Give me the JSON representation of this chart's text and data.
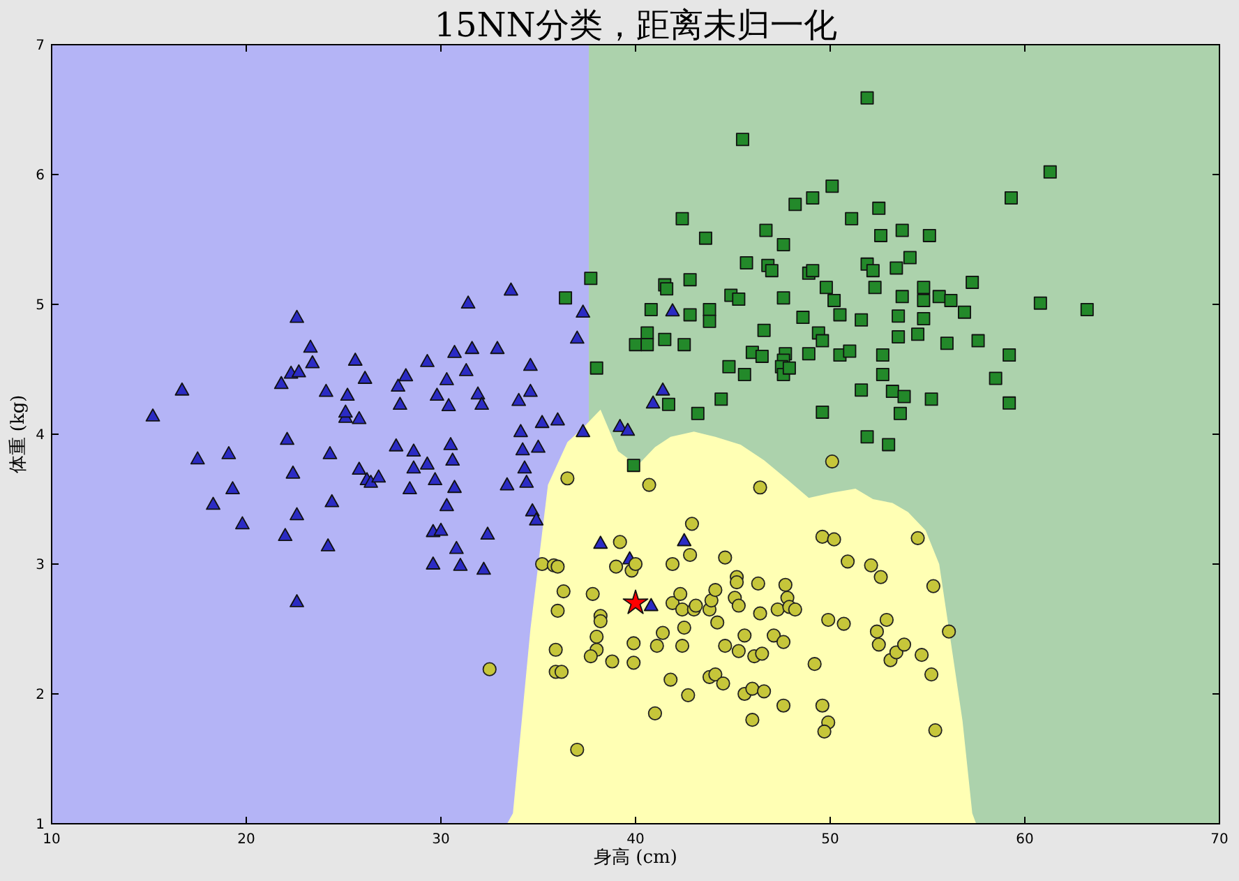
{
  "chart_data": {
    "type": "scatter",
    "title": "15NN分类，距离未归一化",
    "xlabel": "身高 (cm)",
    "ylabel": "体重 (kg)",
    "xlim": [
      10,
      70
    ],
    "ylim": [
      1,
      7
    ],
    "xticks": [
      10,
      20,
      30,
      40,
      50,
      60,
      70
    ],
    "yticks": [
      1,
      2,
      3,
      4,
      5,
      6,
      7
    ],
    "bands": [
      {
        "axis": "x",
        "from": 10,
        "to": 37.6,
        "color": "#b4b4f6"
      },
      {
        "axis": "x",
        "from": 37.6,
        "to": 70,
        "color": "#acd2ac"
      }
    ],
    "series": [
      {
        "type": "area",
        "color": "#ffffb4",
        "x": [
          33.4,
          33.7,
          34.6,
          35.5,
          36.5,
          37.3,
          38.2,
          39.1,
          40.1,
          41.0,
          41.8,
          43.0,
          44.1,
          45.4,
          46.6,
          47.8,
          48.9,
          50.1,
          51.3,
          52.2,
          53.2,
          54.0,
          54.9,
          55.6,
          56.1,
          56.8,
          57.3,
          57.5
        ],
        "values": [
          1.0,
          1.08,
          2.5,
          3.61,
          3.94,
          4.05,
          4.19,
          3.87,
          3.76,
          3.9,
          3.98,
          4.02,
          3.98,
          3.92,
          3.8,
          3.65,
          3.51,
          3.55,
          3.58,
          3.5,
          3.47,
          3.4,
          3.26,
          3.0,
          2.5,
          1.79,
          1.08,
          1.0
        ]
      },
      {
        "marker": "triangle",
        "color": "#2b2bc4",
        "x": [
          15.2,
          16.7,
          17.5,
          18.3,
          19.1,
          19.3,
          19.8,
          21.8,
          22.0,
          22.1,
          22.3,
          22.4,
          22.6,
          22.6,
          22.6,
          22.7,
          23.3,
          23.4,
          24.1,
          24.2,
          24.3,
          24.4,
          25.1,
          25.1,
          25.2,
          25.6,
          25.8,
          25.8,
          26.1,
          26.2,
          26.4,
          26.8,
          27.7,
          27.8,
          27.9,
          28.2,
          28.4,
          28.6,
          28.6,
          29.3,
          29.3,
          29.7,
          29.8,
          29.6,
          29.6,
          30.0,
          30.3,
          30.3,
          30.4,
          30.5,
          30.6,
          30.7,
          30.7,
          30.8,
          31.0,
          31.3,
          31.4,
          31.6,
          31.9,
          32.1,
          32.2,
          32.4,
          32.9,
          33.4,
          33.6,
          34.0,
          34.1,
          34.2,
          34.3,
          34.4,
          34.6,
          34.6,
          34.7,
          34.9,
          35.0,
          35.2,
          36.0,
          37.0,
          37.3,
          37.3,
          38.2,
          39.2,
          39.6,
          39.7,
          40.8,
          41.9,
          40.9,
          41.4,
          42.5
        ],
        "values": [
          4.14,
          4.34,
          3.81,
          3.46,
          3.85,
          3.58,
          3.31,
          4.39,
          3.22,
          3.96,
          4.47,
          3.7,
          2.71,
          4.9,
          3.38,
          4.48,
          4.67,
          4.55,
          4.33,
          3.14,
          3.85,
          3.48,
          4.13,
          4.17,
          4.3,
          4.57,
          4.12,
          3.73,
          4.43,
          3.65,
          3.63,
          3.67,
          3.91,
          4.37,
          4.23,
          4.45,
          3.58,
          3.87,
          3.74,
          4.56,
          3.77,
          3.65,
          4.3,
          3.0,
          3.25,
          3.26,
          4.42,
          3.45,
          4.22,
          3.92,
          3.8,
          4.63,
          3.59,
          3.12,
          2.99,
          4.49,
          5.01,
          4.66,
          4.31,
          4.23,
          2.96,
          3.23,
          4.66,
          3.61,
          5.11,
          4.26,
          4.02,
          3.88,
          3.74,
          3.63,
          4.53,
          4.33,
          3.41,
          3.34,
          3.9,
          4.09,
          4.11,
          4.74,
          4.94,
          4.02,
          3.16,
          4.06,
          4.03,
          3.04,
          2.68,
          4.95,
          4.24,
          4.34,
          3.18
        ]
      },
      {
        "marker": "square",
        "color": "#23892a",
        "x": [
          51.9,
          45.5,
          61.3,
          59.3,
          50.1,
          49.1,
          48.2,
          52.5,
          51.1,
          42.4,
          46.7,
          52.6,
          53.7,
          55.1,
          47.6,
          43.6,
          45.7,
          46.8,
          47.0,
          48.9,
          49.1,
          51.9,
          52.2,
          53.4,
          54.1,
          57.3,
          60.8,
          63.2,
          49.8,
          52.3,
          54.8,
          42.8,
          41.5,
          41.6,
          37.7,
          36.4,
          40.8,
          44.9,
          45.3,
          47.6,
          50.2,
          50.5,
          53.7,
          54.8,
          55.6,
          56.2,
          56.9,
          42.8,
          43.8,
          43.8,
          48.6,
          51.6,
          53.5,
          54.8,
          40.6,
          40.0,
          40.6,
          41.5,
          42.5,
          46.6,
          49.4,
          49.6,
          53.5,
          54.5,
          56.0,
          57.6,
          46.0,
          46.5,
          47.7,
          47.6,
          48.9,
          50.5,
          51.0,
          52.7,
          59.2,
          44.8,
          45.6,
          47.5,
          47.6,
          47.9,
          52.7,
          58.5,
          38.0,
          51.6,
          53.2,
          53.8,
          55.2,
          59.2,
          41.7,
          44.4,
          43.2,
          49.6,
          53.6,
          51.9,
          53.0,
          39.9
        ],
        "values": [
          6.59,
          6.27,
          6.02,
          5.82,
          5.91,
          5.82,
          5.77,
          5.74,
          5.66,
          5.66,
          5.57,
          5.53,
          5.57,
          5.53,
          5.46,
          5.51,
          5.32,
          5.3,
          5.26,
          5.24,
          5.26,
          5.31,
          5.26,
          5.28,
          5.36,
          5.17,
          5.01,
          4.96,
          5.13,
          5.13,
          5.13,
          5.19,
          5.15,
          5.12,
          5.2,
          5.05,
          4.96,
          5.07,
          5.04,
          5.05,
          5.03,
          4.92,
          5.06,
          5.03,
          5.06,
          5.03,
          4.94,
          4.92,
          4.96,
          4.87,
          4.9,
          4.88,
          4.91,
          4.89,
          4.78,
          4.69,
          4.69,
          4.73,
          4.69,
          4.8,
          4.78,
          4.72,
          4.75,
          4.77,
          4.7,
          4.72,
          4.63,
          4.6,
          4.62,
          4.57,
          4.62,
          4.61,
          4.64,
          4.61,
          4.61,
          4.52,
          4.46,
          4.52,
          4.46,
          4.51,
          4.46,
          4.43,
          4.51,
          4.34,
          4.33,
          4.29,
          4.27,
          4.24,
          4.23,
          4.27,
          4.16,
          4.17,
          4.16,
          3.98,
          3.92,
          3.76
        ]
      },
      {
        "marker": "circle",
        "color": "#c6c63a",
        "x": [
          36.5,
          40.7,
          46.4,
          50.1,
          42.9,
          39.2,
          42.8,
          44.6,
          49.6,
          50.2,
          54.5,
          50.9,
          52.1,
          52.6,
          55.3,
          35.2,
          35.8,
          36.0,
          39.0,
          39.8,
          40.0,
          41.9,
          36.3,
          37.8,
          36.0,
          38.2,
          38.2,
          38.0,
          38.0,
          37.7,
          38.8,
          35.9,
          35.9,
          36.2,
          32.5,
          39.9,
          39.9,
          37.0,
          41.0,
          41.1,
          41.4,
          41.9,
          42.3,
          42.4,
          43.0,
          43.1,
          42.5,
          42.4,
          41.8,
          42.7,
          43.8,
          43.9,
          44.1,
          44.2,
          44.6,
          43.8,
          44.1,
          44.5,
          45.1,
          45.3,
          45.2,
          45.2,
          46.3,
          46.4,
          45.6,
          45.3,
          46.1,
          46.5,
          45.6,
          46.0,
          46.6,
          46.0,
          47.6,
          47.3,
          47.7,
          47.8,
          47.9,
          48.2,
          47.1,
          47.6,
          49.2,
          49.6,
          49.9,
          49.7,
          49.9,
          50.7,
          52.4,
          52.5,
          52.9,
          53.1,
          53.4,
          53.8,
          54.7,
          55.2,
          56.1,
          55.4
        ],
        "values": [
          3.66,
          3.61,
          3.59,
          3.79,
          3.31,
          3.17,
          3.07,
          3.05,
          3.21,
          3.19,
          3.2,
          3.02,
          2.99,
          2.9,
          2.83,
          3.0,
          2.99,
          2.98,
          2.98,
          2.95,
          3.0,
          3.0,
          2.79,
          2.77,
          2.64,
          2.6,
          2.56,
          2.44,
          2.34,
          2.29,
          2.25,
          2.34,
          2.17,
          2.17,
          2.19,
          2.39,
          2.24,
          1.57,
          1.85,
          2.37,
          2.47,
          2.7,
          2.77,
          2.65,
          2.65,
          2.68,
          2.51,
          2.37,
          2.11,
          1.99,
          2.65,
          2.72,
          2.8,
          2.55,
          2.37,
          2.13,
          2.15,
          2.08,
          2.74,
          2.68,
          2.9,
          2.86,
          2.85,
          2.62,
          2.45,
          2.33,
          2.29,
          2.31,
          2.0,
          2.04,
          2.02,
          1.8,
          1.91,
          2.65,
          2.84,
          2.74,
          2.67,
          2.65,
          2.45,
          2.4,
          2.23,
          1.91,
          1.78,
          1.71,
          2.57,
          2.54,
          2.48,
          2.38,
          2.57,
          2.26,
          2.32,
          2.38,
          2.3,
          2.15,
          2.48,
          1.72
        ]
      },
      {
        "marker": "star",
        "color": "#ff0000",
        "x": [
          40.0
        ],
        "values": [
          2.7
        ]
      }
    ]
  }
}
